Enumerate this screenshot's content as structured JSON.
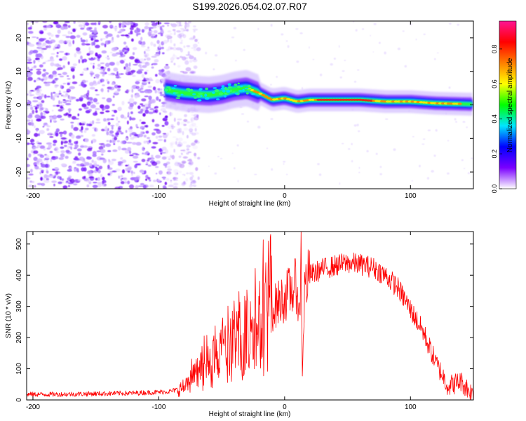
{
  "title": "S199.2026.054.02.07.R07",
  "chart_data": [
    {
      "type": "heatmap",
      "xlabel": "Height of straight line (km)",
      "ylabel": "Frequency (Hz)",
      "xlim": [
        -205,
        150
      ],
      "ylim": [
        -25,
        25
      ],
      "xticks": [
        -200,
        -100,
        0,
        100
      ],
      "yticks": [
        -20,
        -10,
        0,
        10,
        20
      ],
      "colorbar": {
        "label": "Normalized spectral amplitude",
        "range": [
          0,
          0.96
        ],
        "ticks": [
          0.0,
          0.2,
          0.4,
          0.6,
          0.8
        ],
        "tick_labels": [
          "0.0",
          "0.2",
          "0.4",
          "0.6",
          "0.8"
        ],
        "colors": [
          "#ffffff",
          "#7a00ff",
          "#0000ff",
          "#00e5ff",
          "#00ff00",
          "#ffff00",
          "#ff7f00",
          "#ff0000",
          "#ff1493"
        ]
      },
      "ridge": {
        "x": [
          -95,
          -80,
          -60,
          -50,
          -40,
          -30,
          -20,
          -10,
          0,
          10,
          20,
          40,
          60,
          80,
          100,
          120,
          150
        ],
        "y": [
          4.5,
          3.5,
          3,
          3.5,
          4.5,
          5,
          3.5,
          1.5,
          2,
          1,
          1.5,
          1.5,
          1.5,
          1,
          1,
          0.5,
          0.2
        ]
      },
      "noise_region_x": [
        -205,
        -85
      ]
    },
    {
      "type": "line",
      "xlabel": "Height of straight line (km)",
      "ylabel": "SNR (10 * v/v)",
      "xlim": [
        -205,
        150
      ],
      "ylim": [
        0,
        540
      ],
      "xticks": [
        -200,
        -100,
        0,
        100
      ],
      "yticks": [
        0,
        100,
        200,
        300,
        400,
        500
      ],
      "color": "#ff0000",
      "series": [
        {
          "name": "SNR",
          "x": [
            -205,
            -180,
            -150,
            -120,
            -100,
            -90,
            -80,
            -70,
            -60,
            -50,
            -40,
            -30,
            -20,
            -10,
            0,
            5,
            10,
            12,
            13,
            14,
            16,
            20,
            25,
            30,
            40,
            50,
            60,
            70,
            80,
            90,
            100,
            110,
            120,
            130,
            140,
            150
          ],
          "values": [
            18,
            18,
            20,
            22,
            25,
            28,
            40,
            80,
            110,
            140,
            160,
            200,
            230,
            290,
            330,
            350,
            370,
            240,
            520,
            80,
            370,
            400,
            410,
            420,
            430,
            440,
            435,
            425,
            400,
            360,
            290,
            220,
            120,
            45,
            60,
            15
          ]
        }
      ]
    }
  ]
}
